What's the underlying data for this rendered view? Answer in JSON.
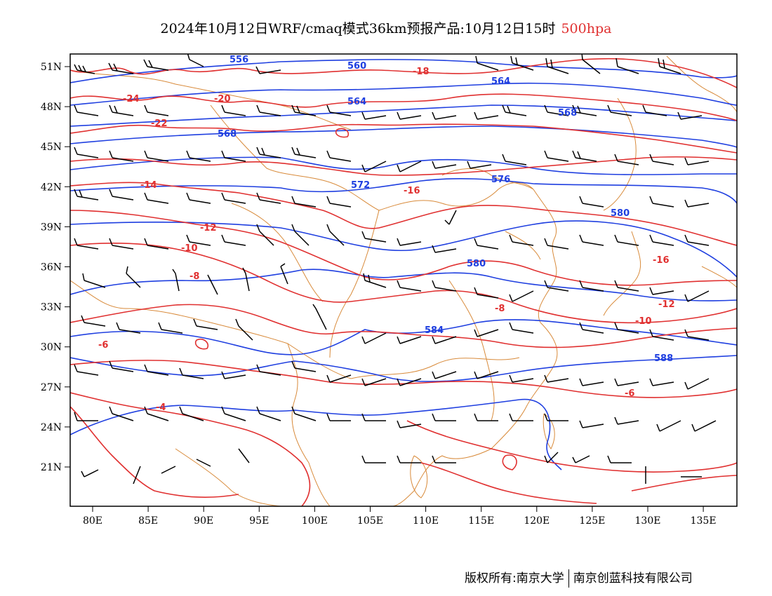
{
  "title": {
    "main": "2024年10月12日WRF/cmaq模式36km预报产品:10月12日15时",
    "level": "500hpa"
  },
  "footer": {
    "left": "版权所有:南京大学",
    "right": "南京创蓝科技有限公司"
  },
  "axes": {
    "lon_ticks": [
      "80E",
      "85E",
      "90E",
      "95E",
      "100E",
      "105E",
      "110E",
      "115E",
      "120E",
      "125E",
      "130E",
      "135E"
    ],
    "lat_ticks": [
      "21N",
      "24N",
      "27N",
      "30N",
      "33N",
      "36N",
      "39N",
      "42N",
      "45N",
      "48N",
      "51N"
    ]
  },
  "colors": {
    "height_contours": "#1f3fe0",
    "temperature_contours": "#e03030",
    "coastline_border": "#d88a3a",
    "wind_barbs": "#000000"
  },
  "height_labels": [
    "556",
    "560",
    "564",
    "568",
    "572",
    "576",
    "580",
    "584",
    "588",
    "568",
    "564",
    "580"
  ],
  "temp_labels": [
    "-24",
    "-22",
    "-20",
    "-18",
    "-16",
    "-14",
    "-12",
    "-10",
    "-8",
    "-6",
    "-4",
    "-16",
    "-12",
    "-8",
    "-6",
    "-10"
  ]
}
